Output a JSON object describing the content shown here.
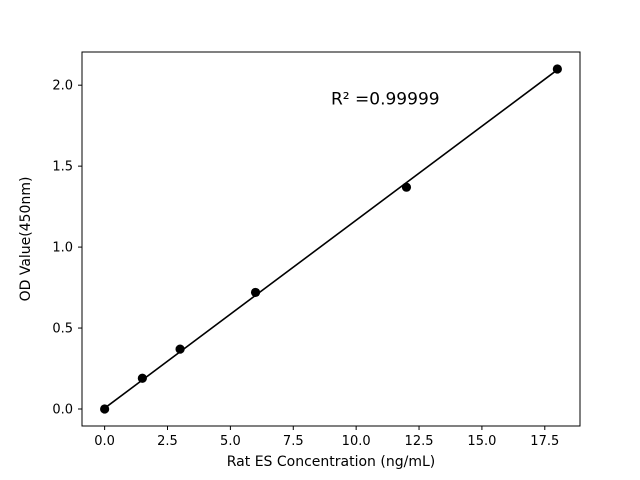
{
  "chart_data": {
    "type": "scatter",
    "title": "",
    "xlabel": "Rat ES Concentration (ng/mL)",
    "ylabel": "OD Value(450nm)",
    "annotation": "R² =0.99999",
    "annotation_xy": [
      9.0,
      1.88
    ],
    "x": [
      0,
      1.5,
      3,
      6,
      12,
      18
    ],
    "y": [
      0.0,
      0.19,
      0.37,
      0.72,
      1.37,
      2.1
    ],
    "fit_line": {
      "x": [
        0,
        18
      ],
      "y": [
        0.005,
        2.095
      ]
    },
    "xticks": [
      0.0,
      2.5,
      5.0,
      7.5,
      10.0,
      12.5,
      15.0,
      17.5
    ],
    "yticks": [
      0.0,
      0.5,
      1.0,
      1.5,
      2.0
    ],
    "xlim": [
      -0.9,
      18.9
    ],
    "ylim": [
      -0.105,
      2.205
    ],
    "grid": false,
    "legend": null,
    "marker_color": "#000000",
    "line_color": "#000000",
    "axis_color": "#000000",
    "background_color": "#ffffff"
  }
}
